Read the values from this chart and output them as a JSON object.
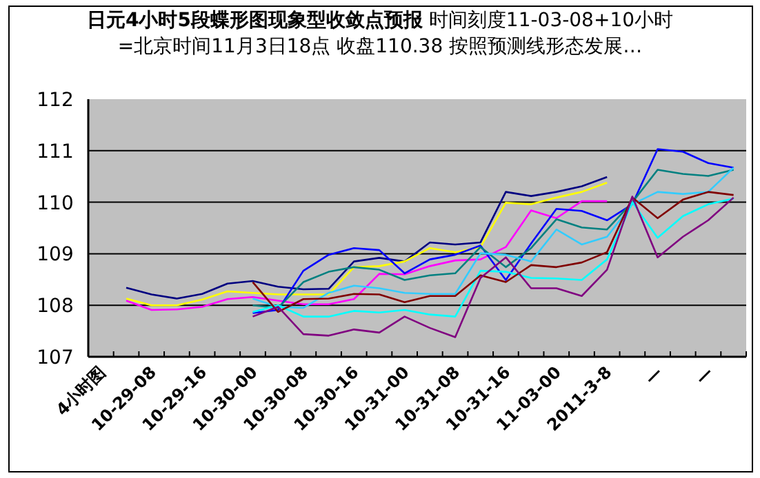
{
  "chart_data": {
    "type": "line",
    "title": "**日元4小时5段蝶形图现象型收敛点预报** 时间刻度11-03-08+10小时=北京时间11月3日18点 收盘110.38 按照预测线形态发展…",
    "categories": [
      "4小时图",
      null,
      "10-29-08",
      null,
      "10-29-16",
      null,
      "10-30-00",
      null,
      "10-30-08",
      null,
      "10-30-16",
      null,
      "10-31-00",
      null,
      "10-31-08",
      null,
      "10-31-16",
      null,
      "11-03-00",
      null,
      "2011-3-8",
      null,
      "—",
      null,
      "—",
      null
    ],
    "ylim": [
      107,
      112
    ],
    "yticks": [
      107,
      108,
      109,
      110,
      111,
      112
    ],
    "grid": "y",
    "series": [
      {
        "color": "#000080",
        "values": [
          null,
          108.34,
          108.21,
          108.13,
          108.22,
          108.42,
          108.47,
          108.36,
          108.31,
          108.32,
          108.85,
          108.92,
          108.85,
          109.22,
          109.18,
          109.22,
          110.2,
          110.12,
          110.2,
          110.31,
          110.49,
          null,
          null,
          null,
          null,
          null
        ]
      },
      {
        "color": "#ffff00",
        "values": [
          null,
          108.13,
          108.0,
          108.0,
          108.11,
          108.27,
          108.24,
          108.21,
          108.21,
          108.21,
          108.74,
          108.76,
          108.85,
          109.11,
          109.03,
          109.13,
          109.99,
          109.96,
          110.09,
          110.2,
          110.38,
          null,
          null,
          null,
          null,
          null
        ]
      },
      {
        "color": "#ff00ff",
        "values": [
          null,
          108.09,
          107.91,
          107.92,
          107.97,
          108.12,
          108.16,
          108.09,
          108.02,
          108.02,
          108.12,
          108.61,
          108.6,
          108.76,
          108.87,
          108.89,
          109.13,
          109.84,
          109.69,
          110.02,
          110.02,
          null,
          null,
          null,
          null,
          null
        ]
      },
      {
        "color": "#0000ff",
        "values": [
          null,
          null,
          null,
          null,
          null,
          null,
          107.85,
          107.91,
          108.67,
          108.98,
          109.11,
          109.07,
          108.62,
          108.89,
          108.98,
          109.16,
          108.49,
          109.2,
          109.87,
          109.83,
          109.65,
          109.96,
          111.03,
          110.98,
          110.76,
          110.67
        ]
      },
      {
        "color": "#008080",
        "values": [
          null,
          null,
          null,
          null,
          null,
          null,
          108.0,
          107.95,
          108.45,
          108.65,
          108.74,
          108.69,
          108.49,
          108.58,
          108.62,
          109.13,
          108.74,
          109.11,
          109.67,
          109.51,
          109.47,
          110.0,
          110.63,
          110.55,
          110.51,
          110.63
        ]
      },
      {
        "color": "#33ccff",
        "values": [
          null,
          null,
          null,
          null,
          null,
          null,
          108.13,
          107.97,
          107.95,
          108.24,
          108.38,
          108.33,
          108.24,
          108.22,
          108.22,
          109.01,
          108.98,
          108.85,
          109.47,
          109.18,
          109.33,
          109.96,
          110.2,
          110.16,
          110.2,
          110.67
        ]
      },
      {
        "color": "#00ffff",
        "values": [
          null,
          null,
          null,
          null,
          null,
          null,
          107.87,
          108.0,
          107.78,
          107.78,
          107.89,
          107.86,
          107.91,
          107.82,
          107.78,
          108.67,
          108.65,
          108.53,
          108.52,
          108.49,
          108.89,
          110.0,
          109.31,
          109.73,
          109.96,
          110.07
        ]
      },
      {
        "color": "#800000",
        "values": [
          null,
          null,
          null,
          null,
          null,
          null,
          108.45,
          107.87,
          108.12,
          108.13,
          108.22,
          108.21,
          108.06,
          108.18,
          108.18,
          108.58,
          108.45,
          108.78,
          108.74,
          108.83,
          109.03,
          110.09,
          109.69,
          110.05,
          110.2,
          110.14
        ]
      },
      {
        "color": "#800080",
        "values": [
          null,
          null,
          null,
          null,
          null,
          null,
          107.78,
          107.97,
          107.44,
          107.41,
          107.53,
          107.47,
          107.78,
          107.56,
          107.38,
          108.53,
          108.93,
          108.33,
          108.33,
          108.18,
          108.69,
          110.11,
          108.93,
          109.33,
          109.65,
          110.09
        ]
      }
    ]
  }
}
